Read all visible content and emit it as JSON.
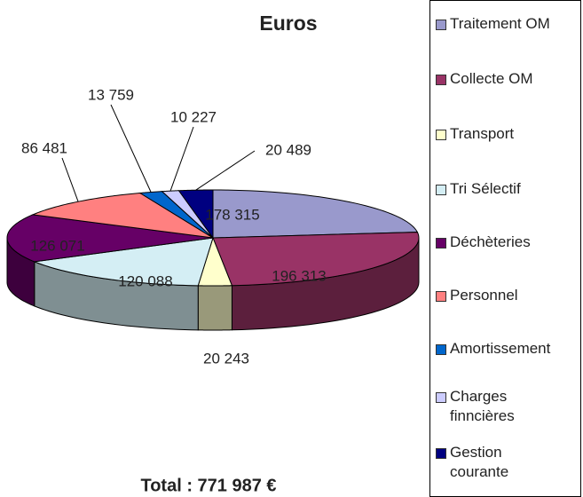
{
  "chart_data": {
    "type": "pie",
    "title": "Euros",
    "categories": [
      "Traitement OM",
      "Collecte OM",
      "Transport",
      "Tri Sélectif",
      "Déchèteries",
      "Personnel",
      "Amortissement",
      "Charges\nfinncières",
      "Gestion\ncourante"
    ],
    "values": [
      178315,
      196313,
      20243,
      120088,
      126071,
      86481,
      13759,
      10227,
      20489
    ],
    "value_labels": [
      "178 315",
      "196 313",
      "20 243",
      "120 088",
      "126 071",
      "86 481",
      "13 759",
      "10 227",
      "20 489"
    ],
    "colors": [
      "#9999cc",
      "#993366",
      "#ffffcc",
      "#d4eef4",
      "#660066",
      "#ff8080",
      "#0066cc",
      "#ccccff",
      "#000080"
    ],
    "annotation": "Total : 771 987 €",
    "legend": "right"
  }
}
